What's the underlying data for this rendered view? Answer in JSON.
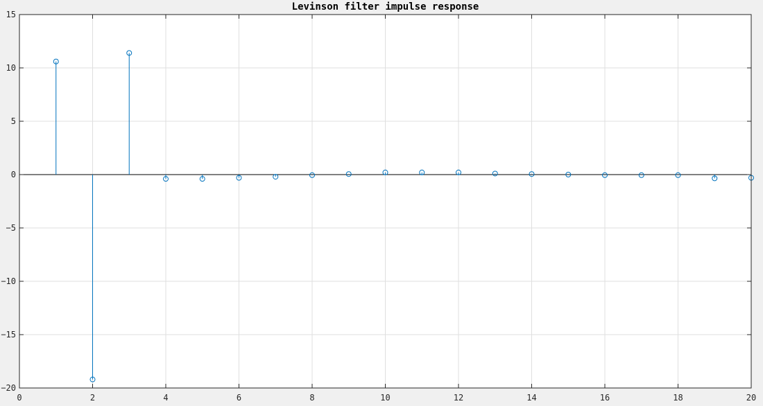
{
  "chart_data": {
    "type": "stem",
    "title": "Levinson filter impulse response",
    "xlabel": "",
    "ylabel": "",
    "xlim": [
      0,
      20
    ],
    "ylim": [
      -20,
      15
    ],
    "xticks": [
      0,
      2,
      4,
      6,
      8,
      10,
      12,
      14,
      16,
      18,
      20
    ],
    "yticks": [
      -20,
      -15,
      -10,
      -5,
      0,
      5,
      10,
      15
    ],
    "x": [
      1,
      2,
      3,
      4,
      5,
      6,
      7,
      8,
      9,
      10,
      11,
      12,
      13,
      14,
      15,
      16,
      17,
      18,
      19,
      20
    ],
    "values": [
      10.6,
      -19.2,
      11.4,
      -0.4,
      -0.4,
      -0.3,
      -0.2,
      -0.05,
      0.05,
      0.2,
      0.2,
      0.2,
      0.1,
      0.05,
      0.0,
      -0.05,
      -0.05,
      -0.05,
      -0.35,
      -0.3
    ],
    "grid": true,
    "colors": {
      "series": "#0072bd",
      "axes": "#262626",
      "grid": "#dfdfdf",
      "plot_background": "#ffffff",
      "figure_background": "#f0f0f0"
    }
  }
}
